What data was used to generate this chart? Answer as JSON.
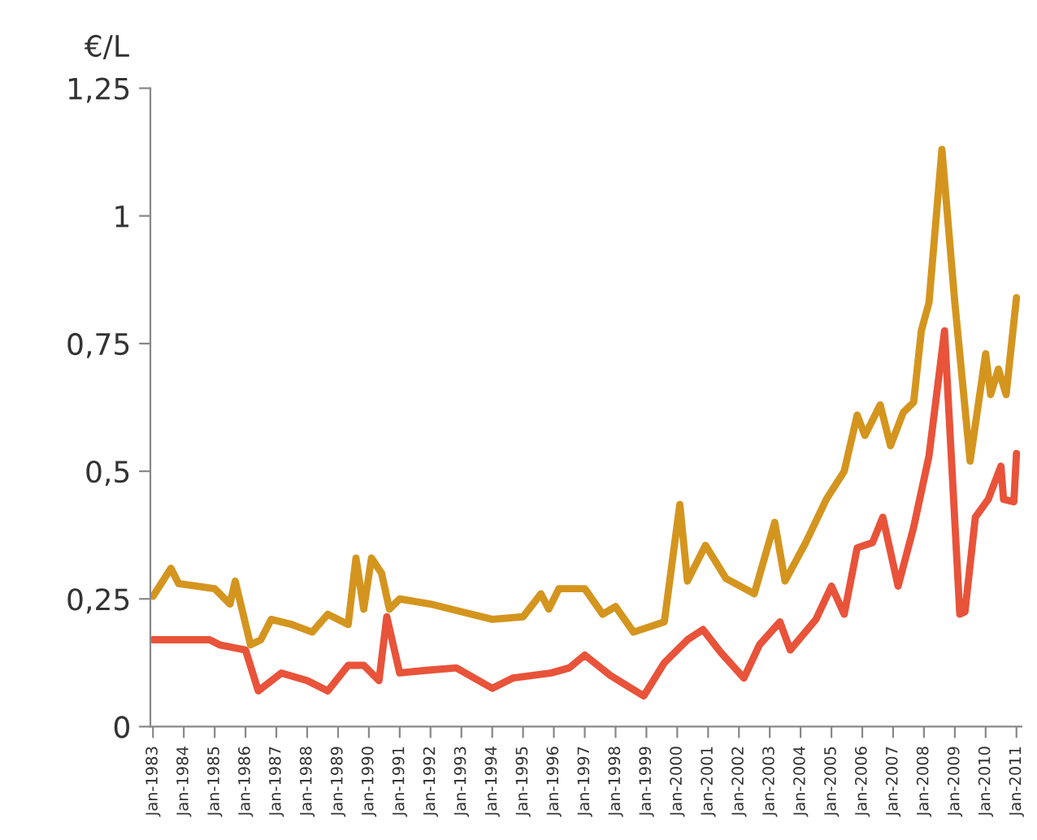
{
  "chart_data": {
    "type": "line",
    "ylabel": "€/L",
    "xlim": [
      "1982-12",
      "2011-03"
    ],
    "ylim": [
      0,
      1.25
    ],
    "yticks": [
      0,
      {
        "value": 0.25,
        "label": "0,25"
      },
      {
        "value": 0.5,
        "label": "0,5"
      },
      {
        "value": 0.75,
        "label": "0,75"
      },
      1,
      {
        "value": 1.25,
        "label": "1,25"
      }
    ],
    "xticks": [
      {
        "value": "1983-01",
        "label": "Jan-1983"
      },
      {
        "value": "1984-01",
        "label": "Jan-1984"
      },
      {
        "value": "1985-01",
        "label": "Jan-1985"
      },
      {
        "value": "1986-01",
        "label": "Jan-1986"
      },
      {
        "value": "1987-01",
        "label": "Jan-1987"
      },
      {
        "value": "1988-01",
        "label": "Jan-1988"
      },
      {
        "value": "1989-01",
        "label": "Jan-1989"
      },
      {
        "value": "1990-01",
        "label": "Jan-1990"
      },
      {
        "value": "1991-01",
        "label": "Jan-1991"
      },
      {
        "value": "1992-01",
        "label": "Jan-1992"
      },
      {
        "value": "1993-01",
        "label": "Jan-1993"
      },
      {
        "value": "1994-01",
        "label": "Jan-1994"
      },
      {
        "value": "1995-01",
        "label": "Jan-1995"
      },
      {
        "value": "1996-01",
        "label": "Jan-1996"
      },
      {
        "value": "1997-01",
        "label": "Jan-1997"
      },
      {
        "value": "1998-01",
        "label": "Jan-1998"
      },
      {
        "value": "1999-01",
        "label": "Jan-1999"
      },
      {
        "value": "2000-01",
        "label": "Jan-2000"
      },
      {
        "value": "2001-01",
        "label": "Jan-2001"
      },
      {
        "value": "2002-01",
        "label": "Jan-2002"
      },
      {
        "value": "2003-01",
        "label": "Jan-2003"
      },
      {
        "value": "2004-01",
        "label": "Jan-2004"
      },
      {
        "value": "2005-01",
        "label": "Jan-2005"
      },
      {
        "value": "2006-01",
        "label": "Jan-2006"
      },
      {
        "value": "2007-01",
        "label": "Jan-2007"
      },
      {
        "value": "2008-01",
        "label": "Jan-2008"
      },
      {
        "value": "2009-01",
        "label": "Jan-2009"
      },
      {
        "value": "2010-01",
        "label": "Jan-2010"
      },
      {
        "value": "2011-01",
        "label": "Jan-2011"
      }
    ],
    "grid": false,
    "marker": "none",
    "line_style": "solid",
    "series": [
      {
        "color": "#d4951f",
        "x": [
          "1983-01",
          "1983-08",
          "1983-11",
          "1985-01",
          "1985-07",
          "1985-09",
          "1986-03",
          "1986-07",
          "1986-11",
          "1987-07",
          "1988-03",
          "1988-09",
          "1989-05",
          "1989-08",
          "1989-11",
          "1990-02",
          "1990-06",
          "1990-09",
          "1991-01",
          "1992-01",
          "1993-01",
          "1994-01",
          "1995-01",
          "1995-08",
          "1995-11",
          "1996-03",
          "1997-01",
          "1997-08",
          "1998-01",
          "1998-08",
          "1999-08",
          "2000-02",
          "2000-05",
          "2000-12",
          "2001-08",
          "2002-07",
          "2003-03",
          "2003-07",
          "2004-03",
          "2004-11",
          "2005-06",
          "2005-11",
          "2006-02",
          "2006-08",
          "2006-12",
          "2007-05",
          "2007-09",
          "2007-12",
          "2008-03",
          "2008-08",
          "2009-01",
          "2009-07",
          "2010-01",
          "2010-03",
          "2010-06",
          "2010-09",
          "2011-01"
        ],
        "values": [
          0.255,
          0.31,
          0.28,
          0.27,
          0.24,
          0.285,
          0.16,
          0.17,
          0.21,
          0.2,
          0.185,
          0.22,
          0.2,
          0.33,
          0.23,
          0.33,
          0.3,
          0.23,
          0.25,
          0.24,
          0.225,
          0.21,
          0.215,
          0.26,
          0.23,
          0.27,
          0.27,
          0.22,
          0.235,
          0.185,
          0.205,
          0.435,
          0.285,
          0.355,
          0.29,
          0.26,
          0.4,
          0.285,
          0.36,
          0.445,
          0.5,
          0.61,
          0.57,
          0.63,
          0.55,
          0.615,
          0.635,
          0.775,
          0.83,
          1.13,
          0.83,
          0.52,
          0.73,
          0.65,
          0.7,
          0.65,
          0.84
        ]
      },
      {
        "color": "#e8533a",
        "x": [
          "1983-01",
          "1984-11",
          "1985-03",
          "1986-01",
          "1986-06",
          "1987-03",
          "1988-01",
          "1988-09",
          "1989-05",
          "1989-11",
          "1990-05",
          "1990-08",
          "1991-01",
          "1991-11",
          "1992-11",
          "1994-01",
          "1994-09",
          "1995-12",
          "1996-07",
          "1997-01",
          "1997-11",
          "1998-12",
          "1999-08",
          "2000-05",
          "2000-11",
          "2001-06",
          "2002-03",
          "2002-09",
          "2003-05",
          "2003-09",
          "2004-07",
          "2005-01",
          "2005-06",
          "2005-11",
          "2006-05",
          "2006-09",
          "2007-03",
          "2007-09",
          "2008-03",
          "2008-09",
          "2009-03",
          "2009-05",
          "2009-09",
          "2010-02",
          "2010-07",
          "2010-08",
          "2010-12",
          "2011-01"
        ],
        "values": [
          0.17,
          0.17,
          0.16,
          0.15,
          0.07,
          0.105,
          0.09,
          0.07,
          0.12,
          0.12,
          0.09,
          0.215,
          0.105,
          0.11,
          0.115,
          0.075,
          0.095,
          0.105,
          0.115,
          0.14,
          0.1,
          0.06,
          0.125,
          0.17,
          0.19,
          0.145,
          0.095,
          0.16,
          0.205,
          0.15,
          0.21,
          0.275,
          0.22,
          0.35,
          0.36,
          0.41,
          0.275,
          0.39,
          0.53,
          0.775,
          0.22,
          0.225,
          0.41,
          0.445,
          0.51,
          0.445,
          0.44,
          0.535
        ]
      }
    ]
  }
}
